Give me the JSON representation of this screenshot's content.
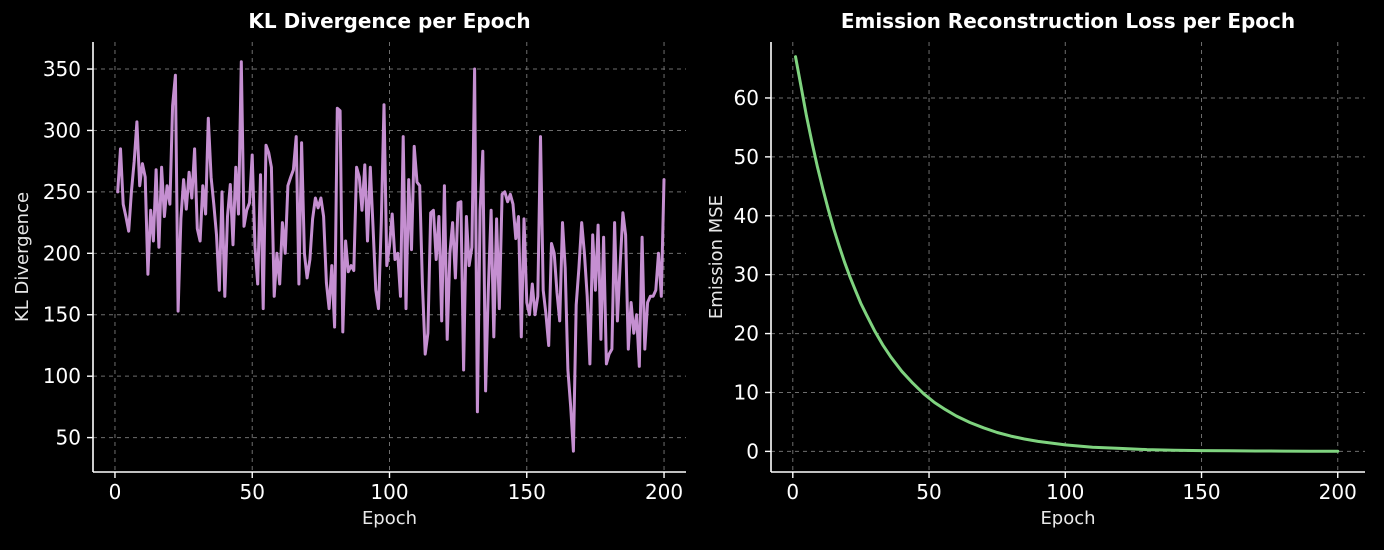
{
  "chart_data": [
    {
      "type": "line",
      "title": "KL Divergence per Epoch",
      "xlabel": "Epoch",
      "ylabel": "KL Divergence",
      "xlim": [
        -8,
        208
      ],
      "ylim": [
        22,
        372
      ],
      "xticks": [
        0,
        50,
        100,
        150,
        200
      ],
      "yticks": [
        50,
        100,
        150,
        200,
        250,
        300,
        350
      ],
      "grid": true,
      "color": "#c58fd1",
      "series": [
        {
          "x": [
            1,
            2,
            3,
            4,
            5,
            6,
            7,
            8,
            9,
            10,
            11,
            12,
            13,
            14,
            15,
            16,
            17,
            18,
            19,
            20,
            21,
            22,
            23,
            24,
            25,
            26,
            27,
            28,
            29,
            30,
            31,
            32,
            33,
            34,
            35,
            36,
            37,
            38,
            39,
            40,
            41,
            42,
            43,
            44,
            45,
            46,
            47,
            48,
            49,
            50,
            51,
            52,
            53,
            54,
            55,
            56,
            57,
            58,
            59,
            60,
            61,
            62,
            63,
            64,
            65,
            66,
            67,
            68,
            69,
            70,
            71,
            72,
            73,
            74,
            75,
            76,
            77,
            78,
            79,
            80,
            81,
            82,
            83,
            84,
            85,
            86,
            87,
            88,
            89,
            90,
            91,
            92,
            93,
            94,
            95,
            96,
            97,
            98,
            99,
            100,
            101,
            102,
            103,
            104,
            105,
            106,
            107,
            108,
            109,
            110,
            111,
            112,
            113,
            114,
            115,
            116,
            117,
            118,
            119,
            120,
            121,
            122,
            123,
            124,
            125,
            126,
            127,
            128,
            129,
            130,
            131,
            132,
            133,
            134,
            135,
            136,
            137,
            138,
            139,
            140,
            141,
            142,
            143,
            144,
            145,
            146,
            147,
            148,
            149,
            150,
            151,
            152,
            153,
            154,
            155,
            156,
            157,
            158,
            159,
            160,
            161,
            162,
            163,
            164,
            165,
            166,
            167,
            168,
            169,
            170,
            171,
            172,
            173,
            174,
            175,
            176,
            177,
            178,
            179,
            180,
            181,
            182,
            183,
            184,
            185,
            186,
            187,
            188,
            189,
            190,
            191,
            192,
            193,
            194,
            195,
            196,
            197,
            198,
            199,
            200
          ],
          "values": [
            250,
            285,
            240,
            230,
            218,
            250,
            275,
            307,
            255,
            273,
            262,
            183,
            235,
            210,
            268,
            205,
            270,
            230,
            255,
            240,
            320,
            345,
            153,
            228,
            260,
            236,
            266,
            245,
            285,
            220,
            210,
            255,
            232,
            310,
            262,
            240,
            215,
            170,
            250,
            165,
            230,
            256,
            207,
            270,
            232,
            356,
            222,
            235,
            241,
            280,
            205,
            175,
            264,
            155,
            288,
            282,
            270,
            165,
            200,
            175,
            225,
            200,
            255,
            262,
            268,
            295,
            175,
            290,
            200,
            180,
            195,
            228,
            245,
            237,
            245,
            230,
            176,
            155,
            190,
            140,
            318,
            316,
            136,
            210,
            185,
            190,
            186,
            270,
            262,
            235,
            272,
            210,
            270,
            222,
            170,
            155,
            225,
            321,
            190,
            206,
            232,
            195,
            200,
            165,
            295,
            155,
            260,
            203,
            287,
            258,
            255,
            175,
            118,
            135,
            233,
            235,
            195,
            230,
            145,
            255,
            130,
            200,
            225,
            180,
            241,
            242,
            105,
            230,
            190,
            205,
            350,
            71,
            235,
            283,
            88,
            170,
            235,
            132,
            228,
            155,
            248,
            250,
            242,
            248,
            240,
            212,
            230,
            132,
            228,
            160,
            150,
            175,
            150,
            165,
            295,
            170,
            150,
            125,
            208,
            200,
            168,
            145,
            225,
            188,
            105,
            75,
            39,
            158,
            188,
            225,
            200,
            165,
            110,
            215,
            170,
            223,
            130,
            213,
            110,
            118,
            122,
            225,
            145,
            190,
            233,
            215,
            122,
            160,
            135,
            150,
            108,
            213,
            122,
            160,
            165,
            165,
            170,
            200,
            165,
            260
          ]
        }
      ]
    },
    {
      "type": "line",
      "title": "Emission Reconstruction Loss per Epoch",
      "xlabel": "Epoch",
      "ylabel": "Emission MSE",
      "xlim": [
        -8,
        210
      ],
      "ylim": [
        -3.5,
        69.5
      ],
      "xticks": [
        0,
        50,
        100,
        150,
        200
      ],
      "yticks": [
        0,
        10,
        20,
        30,
        40,
        50,
        60
      ],
      "grid": true,
      "color": "#7fd37f",
      "series": [
        {
          "x": [
            1,
            3,
            5,
            7,
            9,
            11,
            13,
            15,
            17,
            19,
            21,
            23,
            25,
            27,
            30,
            33,
            36,
            40,
            44,
            48,
            52,
            56,
            60,
            65,
            70,
            75,
            80,
            85,
            90,
            95,
            100,
            110,
            120,
            130,
            140,
            150,
            160,
            170,
            180,
            190,
            200
          ],
          "values": [
            67,
            62,
            57,
            52.5,
            48.4,
            44.6,
            41.1,
            37.8,
            34.9,
            32.1,
            29.6,
            27.3,
            25.1,
            23.2,
            20.5,
            18.1,
            16.0,
            13.6,
            11.6,
            9.8,
            8.3,
            7.1,
            6.0,
            4.9,
            4.0,
            3.2,
            2.6,
            2.1,
            1.7,
            1.4,
            1.1,
            0.7,
            0.5,
            0.3,
            0.2,
            0.14,
            0.1,
            0.07,
            0.05,
            0.03,
            0.02
          ]
        }
      ]
    }
  ]
}
